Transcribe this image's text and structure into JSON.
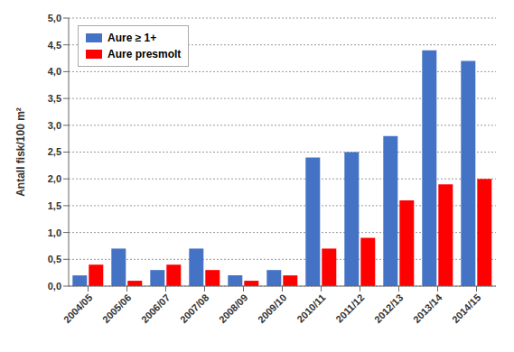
{
  "chart_data": {
    "type": "bar",
    "categories": [
      "2004/05",
      "2005/06",
      "2006/07",
      "2007/08",
      "2008/09",
      "2009/10",
      "2010/11",
      "2011/12",
      "2012/13",
      "2013/14",
      "2014/15"
    ],
    "series": [
      {
        "name": "Aure ≥ 1+",
        "color": "#4472C4",
        "values": [
          0.2,
          0.7,
          0.3,
          0.7,
          0.2,
          0.3,
          2.4,
          2.5,
          2.8,
          4.4,
          4.2
        ]
      },
      {
        "name": "Aure presmolt",
        "color": "#FF0000",
        "values": [
          0.4,
          0.1,
          0.4,
          0.3,
          0.1,
          0.2,
          0.7,
          0.9,
          1.6,
          1.9,
          2.0
        ]
      }
    ],
    "ylabel": "Antall fisk/100 m²",
    "ylim": [
      0.0,
      5.0
    ],
    "yticks": [
      {
        "value": 0.0,
        "label": "0,0"
      },
      {
        "value": 0.5,
        "label": "0,5"
      },
      {
        "value": 1.0,
        "label": "1,0"
      },
      {
        "value": 1.5,
        "label": "1,5"
      },
      {
        "value": 2.0,
        "label": "2,0"
      },
      {
        "value": 2.5,
        "label": "2,5"
      },
      {
        "value": 3.0,
        "label": "3,0"
      },
      {
        "value": 3.5,
        "label": "3,5"
      },
      {
        "value": 4.0,
        "label": "4,0"
      },
      {
        "value": 4.5,
        "label": "4,5"
      },
      {
        "value": 5.0,
        "label": "5,0"
      }
    ],
    "grid": true,
    "legend": "upper left"
  }
}
